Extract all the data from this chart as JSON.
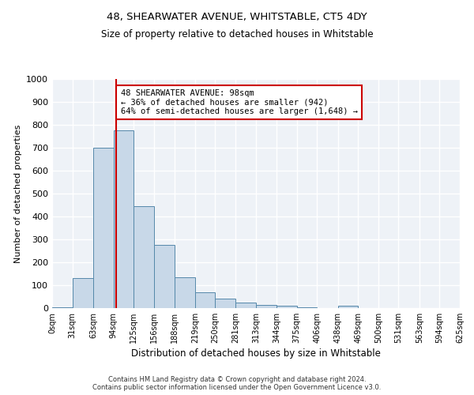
{
  "title": "48, SHEARWATER AVENUE, WHITSTABLE, CT5 4DY",
  "subtitle": "Size of property relative to detached houses in Whitstable",
  "xlabel": "Distribution of detached houses by size in Whitstable",
  "ylabel": "Number of detached properties",
  "bar_values": [
    5,
    130,
    700,
    775,
    445,
    275,
    135,
    70,
    40,
    25,
    15,
    10,
    5,
    0,
    10,
    0,
    0,
    0,
    0,
    0
  ],
  "bin_labels": [
    "0sqm",
    "31sqm",
    "63sqm",
    "94sqm",
    "125sqm",
    "156sqm",
    "188sqm",
    "219sqm",
    "250sqm",
    "281sqm",
    "313sqm",
    "344sqm",
    "375sqm",
    "406sqm",
    "438sqm",
    "469sqm",
    "500sqm",
    "531sqm",
    "563sqm",
    "594sqm",
    "625sqm"
  ],
  "bin_edges": [
    0,
    31,
    63,
    94,
    125,
    156,
    188,
    219,
    250,
    281,
    313,
    344,
    375,
    406,
    438,
    469,
    500,
    531,
    563,
    594,
    625
  ],
  "bar_color": "#c8d8e8",
  "bar_edge_color": "#5588aa",
  "red_line_x": 98,
  "red_line_color": "#cc0000",
  "ylim": [
    0,
    1000
  ],
  "yticks": [
    0,
    100,
    200,
    300,
    400,
    500,
    600,
    700,
    800,
    900,
    1000
  ],
  "annotation_text": "48 SHEARWATER AVENUE: 98sqm\n← 36% of detached houses are smaller (942)\n64% of semi-detached houses are larger (1,648) →",
  "annotation_box_color": "#ffffff",
  "annotation_border_color": "#cc0000",
  "background_color": "#eef2f7",
  "grid_color": "#ffffff",
  "footer_line1": "Contains HM Land Registry data © Crown copyright and database right 2024.",
  "footer_line2": "Contains public sector information licensed under the Open Government Licence v3.0."
}
